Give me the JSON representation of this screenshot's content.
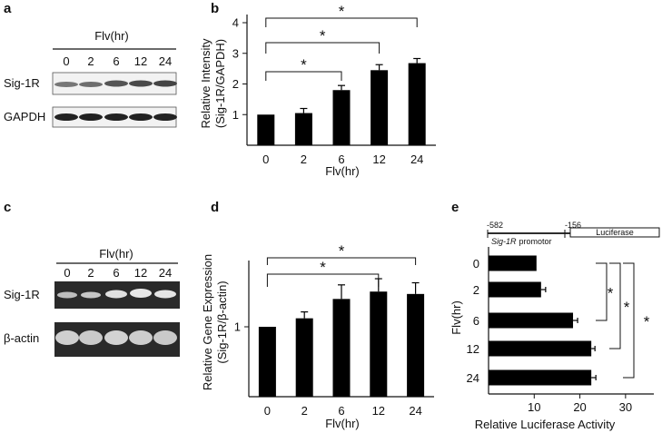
{
  "panels": {
    "a": {
      "letter": "a",
      "title": "Flv(hr)",
      "lanes": [
        "0",
        "2",
        "6",
        "12",
        "24"
      ],
      "rows": [
        "Sig-1R",
        "GAPDH"
      ]
    },
    "b": {
      "letter": "b",
      "ylabel_line1": "Relative Intensity",
      "ylabel_line2": "(Sig-1R/GAPDH)",
      "xlabel": "Flv(hr)"
    },
    "c": {
      "letter": "c",
      "title": "Flv(hr)",
      "lanes": [
        "0",
        "2",
        "6",
        "12",
        "24"
      ],
      "rows": [
        "Sig-1R",
        "β-actin"
      ]
    },
    "d": {
      "letter": "d",
      "ylabel_line1": "Relative Gene Expression",
      "ylabel_line2": "(Sig-1R/β-actin)",
      "xlabel": "Flv(hr)"
    },
    "e": {
      "letter": "e",
      "ylabel": "Flv(hr)",
      "xlabel": "Relative Luciferase Activity",
      "construct_start": "-582",
      "construct_end": "-156",
      "promotor_gene": "Sig-1R",
      "promotor_word": "promotor",
      "reporter": "Luciferase"
    }
  },
  "star": "*",
  "chart_data": [
    {
      "panel": "b",
      "type": "bar",
      "categories": [
        "0",
        "2",
        "6",
        "12",
        "24"
      ],
      "values": [
        1.0,
        1.05,
        1.8,
        2.45,
        2.68
      ],
      "errors": [
        0.0,
        0.15,
        0.15,
        0.18,
        0.15
      ],
      "ylim": [
        0,
        4
      ],
      "yticks": [
        1,
        2,
        3,
        4
      ],
      "significance": [
        {
          "from": "0",
          "to": "6",
          "label": "*"
        },
        {
          "from": "0",
          "to": "12",
          "label": "*"
        },
        {
          "from": "0",
          "to": "24",
          "label": "*"
        }
      ]
    },
    {
      "panel": "d",
      "type": "bar",
      "scale": "log",
      "categories": [
        "0",
        "2",
        "6",
        "12",
        "24"
      ],
      "values": [
        1.0,
        1.12,
        1.45,
        1.6,
        1.55
      ],
      "errors": [
        0.0,
        0.1,
        0.3,
        0.3,
        0.25
      ],
      "yticks": [
        1
      ],
      "significance": [
        {
          "from": "0",
          "to": "12",
          "label": "*"
        },
        {
          "from": "0",
          "to": "24",
          "label": "*"
        }
      ]
    },
    {
      "panel": "e",
      "type": "bar",
      "orientation": "horizontal",
      "categories": [
        "0",
        "2",
        "6",
        "12",
        "24"
      ],
      "values": [
        10.5,
        11.5,
        18.5,
        22.5,
        22.5
      ],
      "errors": [
        0.0,
        1.0,
        1.0,
        0.8,
        1.0
      ],
      "xlim": [
        0,
        35
      ],
      "xticks": [
        10,
        20,
        30
      ],
      "significance": [
        {
          "from": "0",
          "to": "6",
          "label": "*"
        },
        {
          "from": "0",
          "to": "12",
          "label": "*"
        },
        {
          "from": "0",
          "to": "24",
          "label": "*"
        }
      ]
    }
  ]
}
